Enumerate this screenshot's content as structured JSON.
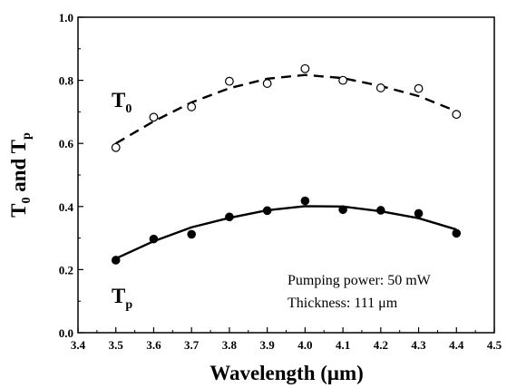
{
  "chart_data": {
    "type": "scatter",
    "xlabel": "Wavelength (μm)",
    "ylabel": {
      "main": "T",
      "sub1": "0",
      "mid": " and T",
      "sub2": "p"
    },
    "xlim": [
      3.4,
      4.5
    ],
    "ylim": [
      0.0,
      1.0
    ],
    "xticks": [
      "3.4",
      "3.5",
      "3.6",
      "3.7",
      "3.8",
      "3.9",
      "4.0",
      "4.1",
      "4.2",
      "4.3",
      "4.4",
      "4.5"
    ],
    "yticks": [
      "0.0",
      "0.2",
      "0.4",
      "0.6",
      "0.8",
      "1.0"
    ],
    "grid": false,
    "series": [
      {
        "label_main": "T",
        "label_sub": "0",
        "marker": "open-circle",
        "fit_line": "dashed",
        "points": [
          {
            "x": 3.5,
            "y": 0.587
          },
          {
            "x": 3.6,
            "y": 0.683
          },
          {
            "x": 3.7,
            "y": 0.716
          },
          {
            "x": 3.8,
            "y": 0.797
          },
          {
            "x": 3.9,
            "y": 0.79
          },
          {
            "x": 4.0,
            "y": 0.837
          },
          {
            "x": 4.1,
            "y": 0.8
          },
          {
            "x": 4.2,
            "y": 0.776
          },
          {
            "x": 4.3,
            "y": 0.774
          },
          {
            "x": 4.4,
            "y": 0.692
          }
        ],
        "fit": {
          "x": [
            3.5,
            3.6,
            3.7,
            3.8,
            3.9,
            4.0,
            4.1,
            4.2,
            4.3,
            4.4
          ],
          "y": [
            0.6,
            0.67,
            0.73,
            0.775,
            0.805,
            0.817,
            0.807,
            0.782,
            0.75,
            0.702
          ]
        }
      },
      {
        "label_main": "T",
        "label_sub": "p",
        "marker": "filled-circle",
        "fit_line": "solid",
        "points": [
          {
            "x": 3.5,
            "y": 0.23
          },
          {
            "x": 3.6,
            "y": 0.297
          },
          {
            "x": 3.7,
            "y": 0.312
          },
          {
            "x": 3.8,
            "y": 0.367
          },
          {
            "x": 3.9,
            "y": 0.387
          },
          {
            "x": 4.0,
            "y": 0.418
          },
          {
            "x": 4.1,
            "y": 0.39
          },
          {
            "x": 4.2,
            "y": 0.388
          },
          {
            "x": 4.3,
            "y": 0.378
          },
          {
            "x": 4.4,
            "y": 0.315
          }
        ],
        "fit": {
          "x": [
            3.5,
            3.6,
            3.7,
            3.8,
            3.9,
            4.0,
            4.1,
            4.2,
            4.3,
            4.4
          ],
          "y": [
            0.235,
            0.29,
            0.334,
            0.364,
            0.388,
            0.401,
            0.4,
            0.385,
            0.363,
            0.327
          ]
        }
      }
    ],
    "annotations": [
      "Pumping power: 50 mW",
      "Thickness: 111 μm"
    ]
  }
}
